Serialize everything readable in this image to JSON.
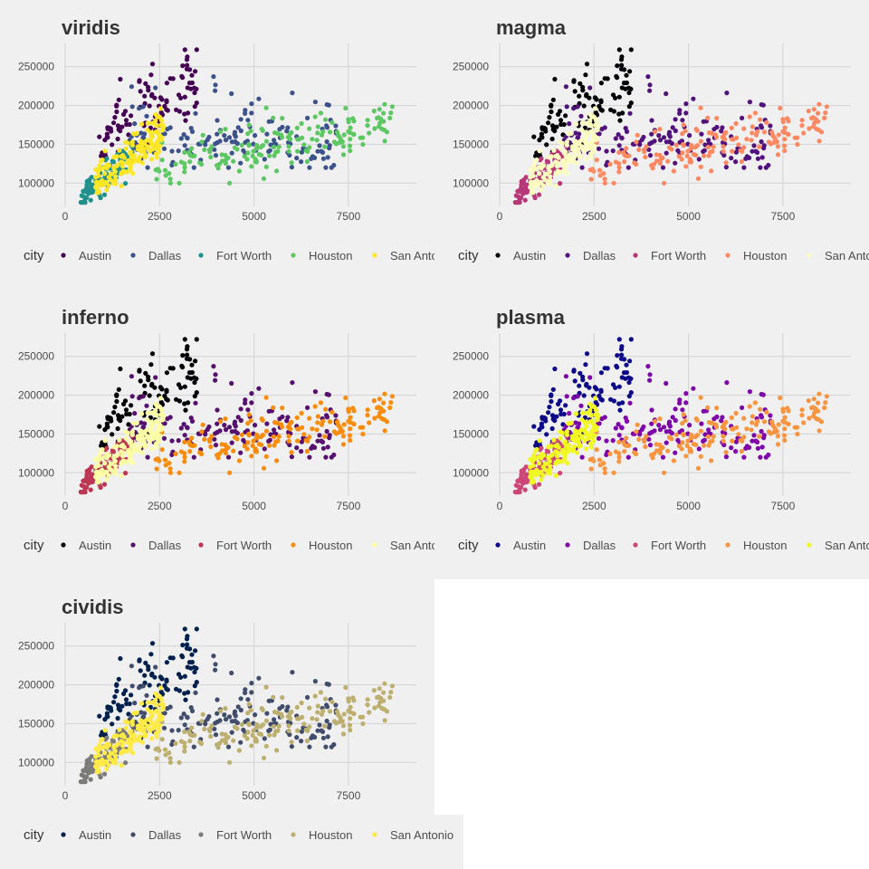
{
  "legend_title": "city",
  "chart_data": [
    {
      "type": "scatter",
      "title": "viridis",
      "xlabel": "",
      "ylabel": "",
      "xlim": [
        0,
        9300
      ],
      "ylim": [
        70000,
        280000
      ],
      "x_ticks": [
        0,
        2500,
        5000,
        7500
      ],
      "y_ticks": [
        100000,
        150000,
        200000,
        250000
      ],
      "x_tick_labels": [
        "0",
        "2500",
        "5000",
        "7500"
      ],
      "y_tick_labels": [
        "100000",
        "150000",
        "200000",
        "250000"
      ],
      "grid": true,
      "legend_position": "bottom",
      "series": [
        {
          "name": "Austin",
          "color": "#440154"
        },
        {
          "name": "Dallas",
          "color": "#3b528b"
        },
        {
          "name": "Fort Worth",
          "color": "#21908c"
        },
        {
          "name": "Houston",
          "color": "#5dc863"
        },
        {
          "name": "San Antonio",
          "color": "#fde725"
        }
      ]
    },
    {
      "type": "scatter",
      "title": "magma",
      "xlabel": "",
      "ylabel": "",
      "xlim": [
        0,
        9300
      ],
      "ylim": [
        70000,
        280000
      ],
      "x_ticks": [
        0,
        2500,
        5000,
        7500
      ],
      "y_ticks": [
        100000,
        150000,
        200000,
        250000
      ],
      "x_tick_labels": [
        "0",
        "2500",
        "5000",
        "7500"
      ],
      "y_tick_labels": [
        "100000",
        "150000",
        "200000",
        "250000"
      ],
      "grid": true,
      "legend_position": "bottom",
      "series": [
        {
          "name": "Austin",
          "color": "#000004"
        },
        {
          "name": "Dallas",
          "color": "#51127c"
        },
        {
          "name": "Fort Worth",
          "color": "#b73779"
        },
        {
          "name": "Houston",
          "color": "#fc8961"
        },
        {
          "name": "San Antonio",
          "color": "#fcfdbf"
        }
      ]
    },
    {
      "type": "scatter",
      "title": "inferno",
      "xlabel": "",
      "ylabel": "",
      "xlim": [
        0,
        9300
      ],
      "ylim": [
        70000,
        280000
      ],
      "x_ticks": [
        0,
        2500,
        5000,
        7500
      ],
      "y_ticks": [
        100000,
        150000,
        200000,
        250000
      ],
      "x_tick_labels": [
        "0",
        "2500",
        "5000",
        "7500"
      ],
      "y_tick_labels": [
        "100000",
        "150000",
        "200000",
        "250000"
      ],
      "grid": true,
      "legend_position": "bottom",
      "series": [
        {
          "name": "Austin",
          "color": "#000004"
        },
        {
          "name": "Dallas",
          "color": "#56106e"
        },
        {
          "name": "Fort Worth",
          "color": "#bb3754"
        },
        {
          "name": "Houston",
          "color": "#f98c0a"
        },
        {
          "name": "San Antonio",
          "color": "#fcffa4"
        }
      ]
    },
    {
      "type": "scatter",
      "title": "plasma",
      "xlabel": "",
      "ylabel": "",
      "xlim": [
        0,
        9300
      ],
      "ylim": [
        70000,
        280000
      ],
      "x_ticks": [
        0,
        2500,
        5000,
        7500
      ],
      "y_ticks": [
        100000,
        150000,
        200000,
        250000
      ],
      "x_tick_labels": [
        "0",
        "2500",
        "5000",
        "7500"
      ],
      "y_tick_labels": [
        "100000",
        "150000",
        "200000",
        "250000"
      ],
      "grid": true,
      "legend_position": "bottom",
      "series": [
        {
          "name": "Austin",
          "color": "#0d0887"
        },
        {
          "name": "Dallas",
          "color": "#7e03a8"
        },
        {
          "name": "Fort Worth",
          "color": "#cc4778"
        },
        {
          "name": "Houston",
          "color": "#f89540"
        },
        {
          "name": "San Antonio",
          "color": "#f0f921"
        }
      ]
    },
    {
      "type": "scatter",
      "title": "cividis",
      "xlabel": "",
      "ylabel": "",
      "xlim": [
        0,
        9300
      ],
      "ylim": [
        70000,
        280000
      ],
      "x_ticks": [
        0,
        2500,
        5000,
        7500
      ],
      "y_ticks": [
        100000,
        150000,
        200000,
        250000
      ],
      "x_tick_labels": [
        "0",
        "2500",
        "5000",
        "7500"
      ],
      "y_tick_labels": [
        "100000",
        "150000",
        "200000",
        "250000"
      ],
      "grid": true,
      "legend_position": "bottom",
      "series": [
        {
          "name": "Austin",
          "color": "#00204d"
        },
        {
          "name": "Dallas",
          "color": "#414d6b"
        },
        {
          "name": "Fort Worth",
          "color": "#7c7b78"
        },
        {
          "name": "Houston",
          "color": "#bcaf6f"
        },
        {
          "name": "San Antonio",
          "color": "#ffea46"
        }
      ]
    }
  ]
}
